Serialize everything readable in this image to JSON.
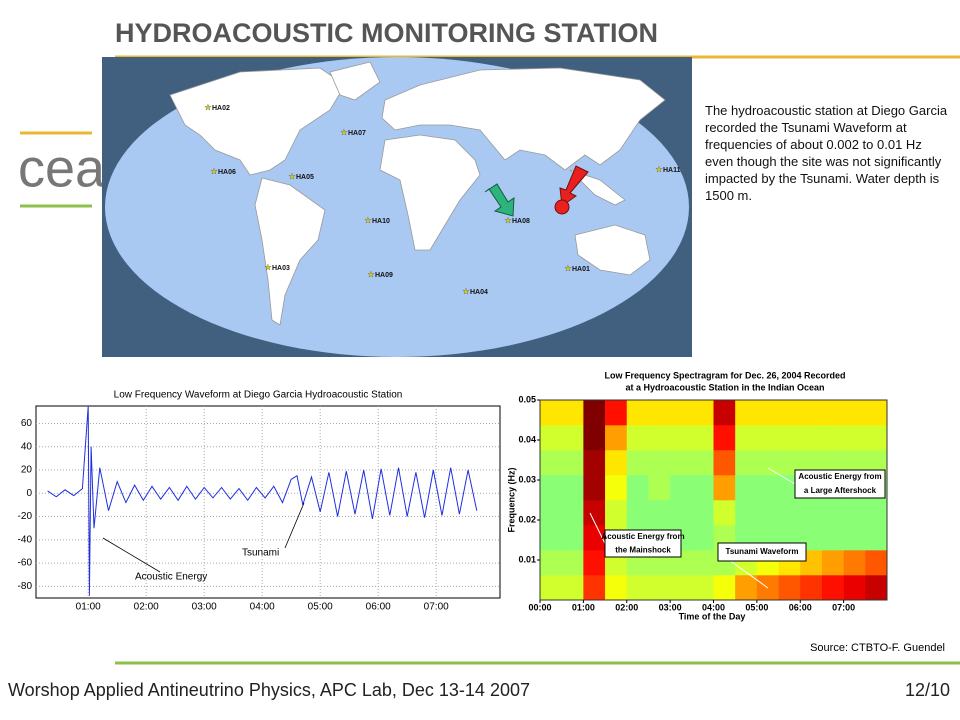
{
  "header": {
    "title": "HYDROACOUSTIC  MONITORING STATION"
  },
  "logo": "cea",
  "map": {
    "stations": [
      "HA02",
      "HA07",
      "HA06",
      "HA05",
      "HA11",
      "HA08",
      "HA10",
      "HA03",
      "HA09",
      "HA01",
      "HA04"
    ]
  },
  "description": "The hydroacoustic station at Diego Garcia recorded the Tsunami Waveform at frequencies of about 0.002 to 0.01 Hz even though the site was not significantly impacted by the Tsunami. Water depth is 1500 m.",
  "chart_data": [
    {
      "type": "line",
      "title": "Low Frequency Waveform at Diego Garcia Hydroacoustic Station",
      "x": [
        0.3,
        0.45,
        0.6,
        0.75,
        0.9,
        1.0,
        1.02,
        1.05,
        1.1,
        1.2,
        1.35,
        1.5,
        1.65,
        1.8,
        1.95,
        2.1,
        2.25,
        2.4,
        2.55,
        2.7,
        2.85,
        3.0,
        3.15,
        3.3,
        3.45,
        3.6,
        3.75,
        3.9,
        4.05,
        4.2,
        4.35,
        4.5,
        4.6,
        4.7,
        4.85,
        5.0,
        5.15,
        5.3,
        5.45,
        5.6,
        5.75,
        5.9,
        6.05,
        6.2,
        6.35,
        6.5,
        6.65,
        6.8,
        6.95,
        7.1,
        7.25,
        7.4,
        7.55,
        7.7
      ],
      "series": [
        {
          "color": "#1f2fe0",
          "values": [
            2,
            -3,
            3,
            -2,
            4,
            75,
            -88,
            40,
            -30,
            22,
            -15,
            10,
            -8,
            7,
            -6,
            6,
            -5,
            5,
            -6,
            6,
            -5,
            5,
            -4,
            5,
            -5,
            4,
            -6,
            5,
            -4,
            6,
            -8,
            12,
            15,
            -10,
            14,
            -16,
            18,
            -20,
            19,
            -18,
            20,
            -22,
            21,
            -19,
            22,
            -20,
            18,
            -21,
            20,
            -19,
            22,
            -18,
            20,
            -15
          ]
        }
      ],
      "xlim": [
        0.1,
        8.1
      ],
      "xticks": [
        {
          "value": 1,
          "label": "01:00"
        },
        {
          "value": 2,
          "label": "02:00"
        },
        {
          "value": 3,
          "label": "03:00"
        },
        {
          "value": 4,
          "label": "04:00"
        },
        {
          "value": 5,
          "label": "05:00"
        },
        {
          "value": 6,
          "label": "06:00"
        },
        {
          "value": 7,
          "label": "07:00"
        }
      ],
      "ylim": [
        -90,
        75
      ],
      "yticks": [
        -80,
        -60,
        -40,
        -20,
        0,
        20,
        40,
        60
      ],
      "grid": true,
      "annotations": [
        "Acoustic Energy",
        "Tsunami"
      ]
    },
    {
      "type": "heatmap",
      "title": [
        "Low Frequency Spectragram for Dec. 26, 2004 Recorded",
        "at a Hydroacoustic Station in the Indian Ocean"
      ],
      "xlabel": "Time of the Day",
      "ylabel": "Frequency (Hz)",
      "xbins": [
        0,
        0.5,
        1,
        1.5,
        2,
        2.5,
        3,
        3.5,
        4,
        4.5,
        5,
        5.5,
        6,
        6.5,
        7,
        7.5,
        8
      ],
      "ybins": [
        0,
        0.00625,
        0.0125,
        0.01875,
        0.025,
        0.03125,
        0.0375,
        0.04375,
        0.05
      ],
      "values": [
        [
          0.4,
          0.4,
          0.75,
          0.45,
          0.4,
          0.4,
          0.4,
          0.4,
          0.45,
          0.6,
          0.65,
          0.7,
          0.75,
          0.8,
          0.85,
          0.9
        ],
        [
          0.35,
          0.35,
          0.8,
          0.4,
          0.35,
          0.35,
          0.35,
          0.35,
          0.35,
          0.4,
          0.45,
          0.5,
          0.55,
          0.6,
          0.65,
          0.7
        ],
        [
          0.3,
          0.3,
          0.85,
          0.4,
          0.3,
          0.3,
          0.3,
          0.3,
          0.35,
          0.3,
          0.3,
          0.3,
          0.3,
          0.3,
          0.3,
          0.3
        ],
        [
          0.3,
          0.3,
          0.9,
          0.4,
          0.3,
          0.3,
          0.3,
          0.3,
          0.4,
          0.3,
          0.3,
          0.3,
          0.3,
          0.3,
          0.3,
          0.3
        ],
        [
          0.3,
          0.3,
          0.95,
          0.45,
          0.3,
          0.35,
          0.3,
          0.3,
          0.6,
          0.3,
          0.3,
          0.3,
          0.3,
          0.3,
          0.3,
          0.3
        ],
        [
          0.35,
          0.35,
          0.95,
          0.5,
          0.35,
          0.35,
          0.35,
          0.35,
          0.7,
          0.35,
          0.35,
          0.35,
          0.35,
          0.35,
          0.35,
          0.35
        ],
        [
          0.4,
          0.4,
          1,
          0.6,
          0.4,
          0.4,
          0.4,
          0.4,
          0.8,
          0.4,
          0.4,
          0.4,
          0.4,
          0.4,
          0.4,
          0.4
        ],
        [
          0.5,
          0.5,
          1,
          0.8,
          0.5,
          0.5,
          0.5,
          0.5,
          0.9,
          0.5,
          0.5,
          0.5,
          0.5,
          0.5,
          0.5,
          0.5
        ]
      ],
      "xlim": [
        0,
        8
      ],
      "xticks": [
        {
          "value": 0,
          "label": "00:00"
        },
        {
          "value": 1,
          "label": "01:00"
        },
        {
          "value": 2,
          "label": "02:00"
        },
        {
          "value": 3,
          "label": "03:00"
        },
        {
          "value": 4,
          "label": "04:00"
        },
        {
          "value": 5,
          "label": "05:00"
        },
        {
          "value": 6,
          "label": "06:00"
        },
        {
          "value": 7,
          "label": "07:00"
        }
      ],
      "ylim": [
        0,
        0.05
      ],
      "yticks": [
        0.01,
        0.02,
        0.03,
        0.04,
        0.05
      ],
      "annotations": [
        [
          "Acoustic Energy from",
          "a Large Aftershock"
        ],
        [
          "Acoustic Energy from",
          "the Mainshock"
        ],
        [
          "Tsunami Waveform"
        ]
      ]
    }
  ],
  "source": "Source: CTBTO-F.  Guendel",
  "footer": {
    "text": "Worshop Applied Antineutrino Physics, APC Lab, Dec 13-14 2007",
    "page": "12/10"
  }
}
